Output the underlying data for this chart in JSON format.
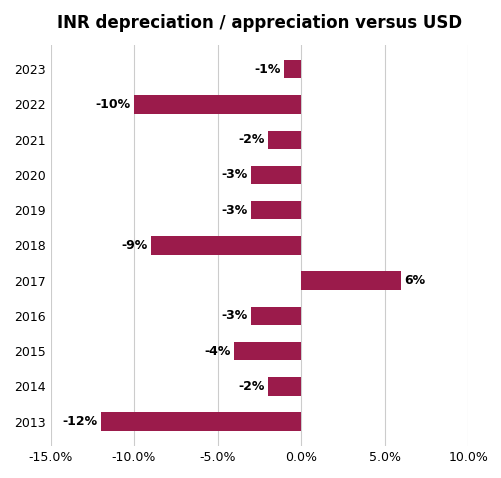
{
  "title": "INR depreciation / appreciation versus USD",
  "years": [
    "2023",
    "2022",
    "2021",
    "2020",
    "2019",
    "2018",
    "2017",
    "2016",
    "2015",
    "2014",
    "2013"
  ],
  "values": [
    -1,
    -10,
    -2,
    -3,
    -3,
    -9,
    6,
    -3,
    -4,
    -2,
    -12
  ],
  "bar_color": "#9B1B4B",
  "xlim": [
    -15,
    10
  ],
  "xticks": [
    -15,
    -10,
    -5,
    0,
    5,
    10
  ],
  "xtick_labels": [
    "-15.0%",
    "-10.0%",
    "-5.0%",
    "0.0%",
    "5.0%",
    "10.0%"
  ],
  "label_fontsize": 9,
  "title_fontsize": 12,
  "tick_label_fontsize": 9,
  "background_color": "#ffffff",
  "grid_color": "#cccccc",
  "bar_height": 0.52
}
